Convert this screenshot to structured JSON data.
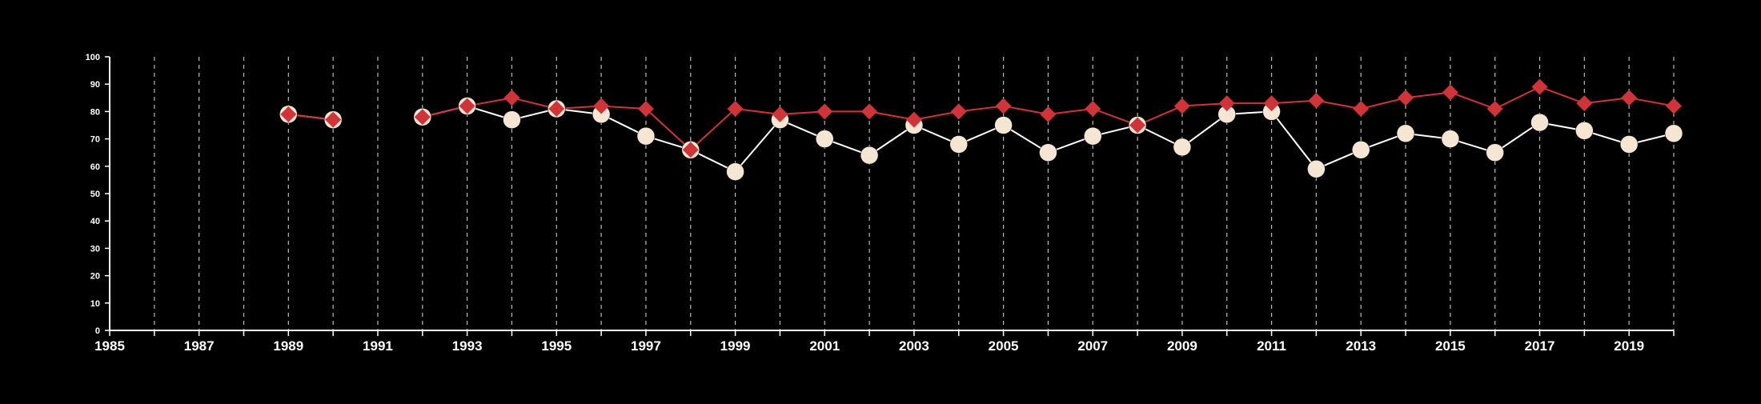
{
  "chart_data": {
    "type": "line",
    "title": "",
    "xlabel": "",
    "ylabel": "",
    "xlim": [
      1985,
      2020
    ],
    "ylim": [
      0,
      100
    ],
    "x_tick_labels": [
      "1985",
      "1987",
      "1989",
      "1991",
      "1993",
      "1995",
      "1997",
      "1999",
      "2001",
      "2003",
      "2005",
      "2007",
      "2009",
      "2011",
      "2013",
      "2015",
      "2017",
      "2019"
    ],
    "y_tick_labels": [
      "0",
      "10",
      "20",
      "30",
      "40",
      "50",
      "60",
      "70",
      "80",
      "90",
      "100"
    ],
    "grid": "vertical dashed lines at every year",
    "legend": "none",
    "colors": {
      "background": "#000000",
      "axis": "#ffffff",
      "grid": "#bbbbbb",
      "series_a_line": "#ffffff",
      "series_a_marker": "#f5e6d3",
      "series_b": "#d13438"
    },
    "series": [
      {
        "marker": "circle",
        "color": "#f5e6d3",
        "points": [
          [
            1989,
            79
          ],
          [
            1990,
            77
          ],
          [
            1992,
            78
          ],
          [
            1993,
            82
          ],
          [
            1994,
            77
          ],
          [
            1995,
            81
          ],
          [
            1996,
            79
          ],
          [
            1997,
            71
          ],
          [
            1998,
            66
          ],
          [
            1999,
            58
          ],
          [
            2000,
            77
          ],
          [
            2001,
            70
          ],
          [
            2002,
            64
          ],
          [
            2003,
            75
          ],
          [
            2004,
            68
          ],
          [
            2005,
            75
          ],
          [
            2006,
            65
          ],
          [
            2007,
            71
          ],
          [
            2008,
            75
          ],
          [
            2009,
            67
          ],
          [
            2010,
            79
          ],
          [
            2011,
            80
          ],
          [
            2012,
            59
          ],
          [
            2013,
            66
          ],
          [
            2014,
            72
          ],
          [
            2015,
            70
          ],
          [
            2016,
            65
          ],
          [
            2017,
            76
          ],
          [
            2018,
            73
          ],
          [
            2019,
            68
          ],
          [
            2020,
            72
          ]
        ]
      },
      {
        "marker": "diamond",
        "color": "#d13438",
        "points": [
          [
            1989,
            79
          ],
          [
            1990,
            77
          ],
          [
            1992,
            78
          ],
          [
            1993,
            82
          ],
          [
            1994,
            85
          ],
          [
            1995,
            81
          ],
          [
            1996,
            82
          ],
          [
            1997,
            81
          ],
          [
            1998,
            66
          ],
          [
            1999,
            81
          ],
          [
            2000,
            79
          ],
          [
            2001,
            80
          ],
          [
            2002,
            80
          ],
          [
            2003,
            77
          ],
          [
            2004,
            80
          ],
          [
            2005,
            82
          ],
          [
            2006,
            79
          ],
          [
            2007,
            81
          ],
          [
            2008,
            75
          ],
          [
            2009,
            82
          ],
          [
            2010,
            83
          ],
          [
            2011,
            83
          ],
          [
            2012,
            84
          ],
          [
            2013,
            81
          ],
          [
            2014,
            85
          ],
          [
            2015,
            87
          ],
          [
            2016,
            81
          ],
          [
            2017,
            89
          ],
          [
            2018,
            83
          ],
          [
            2019,
            85
          ],
          [
            2020,
            82
          ]
        ]
      }
    ]
  }
}
